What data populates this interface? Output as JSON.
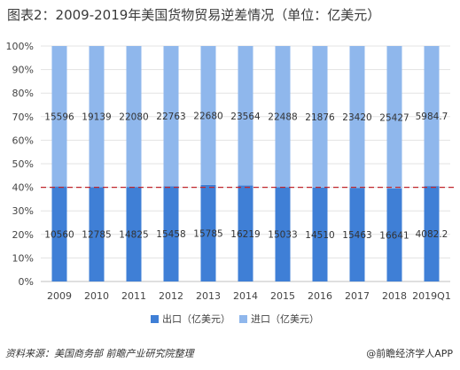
{
  "title": "图表2：2009-2019年美国货物贸易逆差情况（单位：亿美元）",
  "source": "资料来源：美国商务部 前瞻产业研究院整理",
  "brand": "@前瞻经济学人APP",
  "colors": {
    "export": "#3f7fd6",
    "import": "#8fb7ec",
    "reference_line": "#c0262c"
  },
  "chart_data": {
    "type": "bar",
    "stacked": "percent",
    "categories": [
      "2009",
      "2010",
      "2011",
      "2012",
      "2013",
      "2014",
      "2015",
      "2016",
      "2017",
      "2018",
      "2019Q1"
    ],
    "series": [
      {
        "name": "出口（亿美元）",
        "values": [
          10560,
          12785,
          14825,
          15458,
          15785,
          16219,
          15033,
          14510,
          15463,
          16641,
          4082.2
        ],
        "labels": [
          "10560",
          "12785",
          "14825",
          "15458",
          "15785",
          "16219",
          "15033",
          "14510",
          "15463",
          "16641",
          "4082.2"
        ]
      },
      {
        "name": "进口（亿美元）",
        "values": [
          15596,
          19139,
          22080,
          22763,
          22680,
          23564,
          22488,
          21876,
          23420,
          25427,
          5984.7
        ],
        "labels": [
          "15596",
          "19139",
          "22080",
          "22763",
          "22680",
          "23564",
          "22488",
          "21876",
          "23420",
          "25427",
          "5984.7"
        ]
      }
    ],
    "yticks": [
      "0%",
      "10%",
      "20%",
      "30%",
      "40%",
      "50%",
      "60%",
      "70%",
      "80%",
      "90%",
      "100%"
    ],
    "ylim": [
      0,
      1
    ],
    "reference_line": 0.4,
    "legend_position": "bottom-center",
    "grid": true
  }
}
